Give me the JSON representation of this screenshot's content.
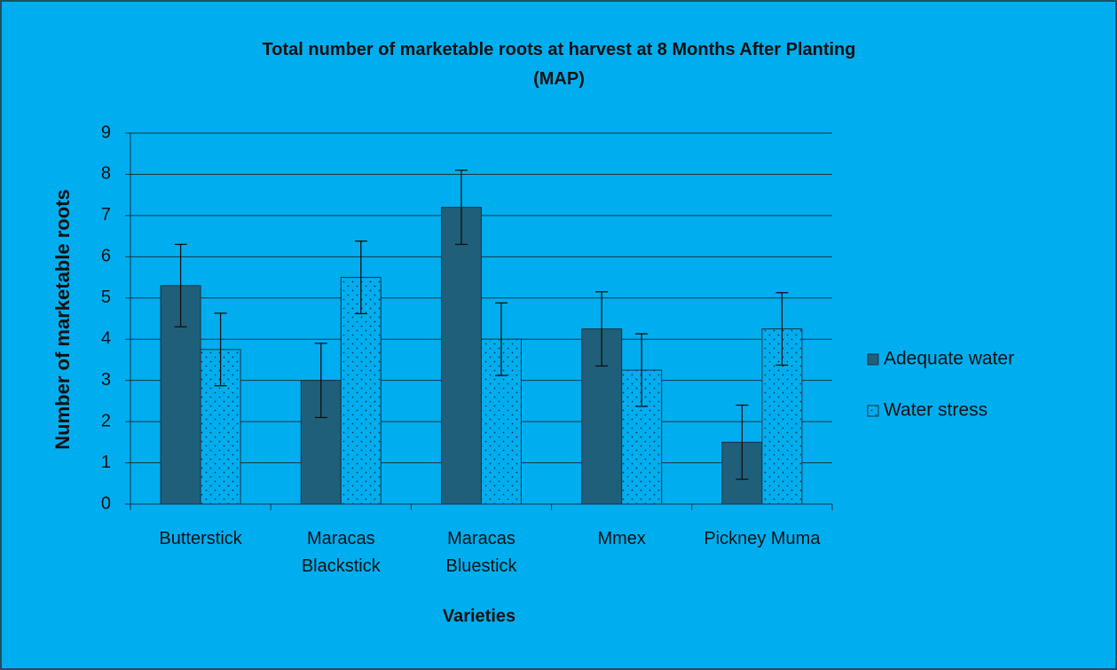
{
  "chart_data": {
    "type": "bar",
    "title": "Total number of marketable roots at harvest at 8 Months After Planting\n(MAP)",
    "x_label": "Varieties",
    "y_label": "Number of marketable roots",
    "categories": [
      "Butterstick",
      "Maracas Blackstick",
      "Maracas Bluestick",
      "Mmex",
      "Pickney Muma"
    ],
    "series": [
      {
        "name": "Adequate water",
        "color": "#1f5f7a",
        "pattern": "solid",
        "values": [
          5.3,
          3.0,
          7.2,
          4.25,
          1.5
        ],
        "errors": [
          1.0,
          0.9,
          0.9,
          0.9,
          0.9
        ]
      },
      {
        "name": "Water stress",
        "color": "#00aeef",
        "pattern": "dots",
        "values": [
          3.75,
          5.5,
          4.0,
          3.25,
          4.25
        ],
        "errors": [
          0.88,
          0.88,
          0.88,
          0.88,
          0.88
        ]
      }
    ],
    "ylim": [
      0,
      9
    ],
    "yticks": [
      0,
      1,
      2,
      3,
      4,
      5,
      6,
      7,
      8,
      9
    ],
    "grid": true,
    "legend": "right"
  }
}
